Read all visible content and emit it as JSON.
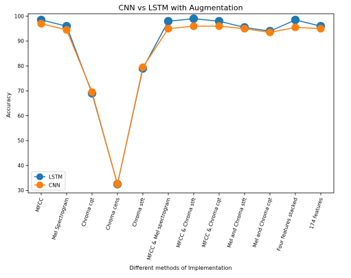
{
  "chart_data": {
    "type": "line",
    "title": "CNN vs LSTM with Augmentation",
    "xlabel": "Different methods of Implementation",
    "ylabel": "Accuracy",
    "ylim": [
      29,
      101
    ],
    "yticks": [
      30,
      40,
      50,
      60,
      70,
      80,
      90,
      100
    ],
    "categories": [
      "MFCC",
      "Mel Spectrogram",
      "Chroma cqt",
      "Chroma cens",
      "Chroma stft",
      "MFCC & Mel spectrogram",
      "MFCC & Chroma stft",
      "MFCC & Chroma cqt",
      "Mel and Chroma stft",
      "Mel and Chroma cqt",
      "Four features stacked",
      "174 features"
    ],
    "series": [
      {
        "name": "LSTM",
        "color": "#1f77b4",
        "values": [
          98.5,
          96,
          69,
          32.5,
          79,
          98,
          99,
          98,
          95.5,
          94,
          98.5,
          96
        ]
      },
      {
        "name": "CNN",
        "color": "#ff7f0e",
        "values": [
          97,
          94.5,
          69.5,
          32.5,
          79.5,
          95,
          96,
          96,
          95,
          93.5,
          95.5,
          95
        ]
      }
    ],
    "legend_position": "lower-left",
    "grid": false
  }
}
